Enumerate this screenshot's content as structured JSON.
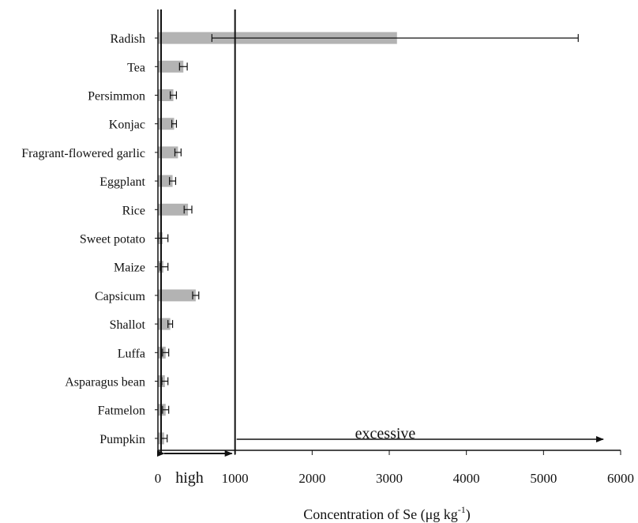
{
  "chart_data": {
    "type": "bar",
    "orientation": "horizontal",
    "categories": [
      "Radish",
      "Tea",
      "Persimmon",
      "Konjac",
      "Fragrant-flowered garlic",
      "Eggplant",
      "Rice",
      "Sweet potato",
      "Maize",
      "Capsicum",
      "Shallot",
      "Luffa",
      "Asparagus bean",
      "Fatmelon",
      "Pumpkin"
    ],
    "values": [
      3100,
      330,
      200,
      210,
      260,
      190,
      390,
      60,
      70,
      490,
      160,
      100,
      90,
      100,
      80
    ],
    "error_minus": [
      2400,
      50,
      40,
      30,
      40,
      40,
      50,
      60,
      40,
      40,
      30,
      40,
      40,
      40,
      40
    ],
    "error_plus": [
      2350,
      50,
      40,
      30,
      40,
      40,
      50,
      70,
      60,
      40,
      30,
      40,
      40,
      40,
      40
    ],
    "xlabel_main": "Concentration of Se (μg kg",
    "xlabel_sup": "-1",
    "xlabel_end": ")",
    "xlim": [
      0,
      6000
    ],
    "xticks": [
      0,
      1000,
      2000,
      3000,
      4000,
      5000,
      6000
    ],
    "bar_color": "#b3b3b3",
    "grid": false,
    "annotations": {
      "high": "high",
      "excessive": "excessive",
      "threshold": 1000
    }
  }
}
